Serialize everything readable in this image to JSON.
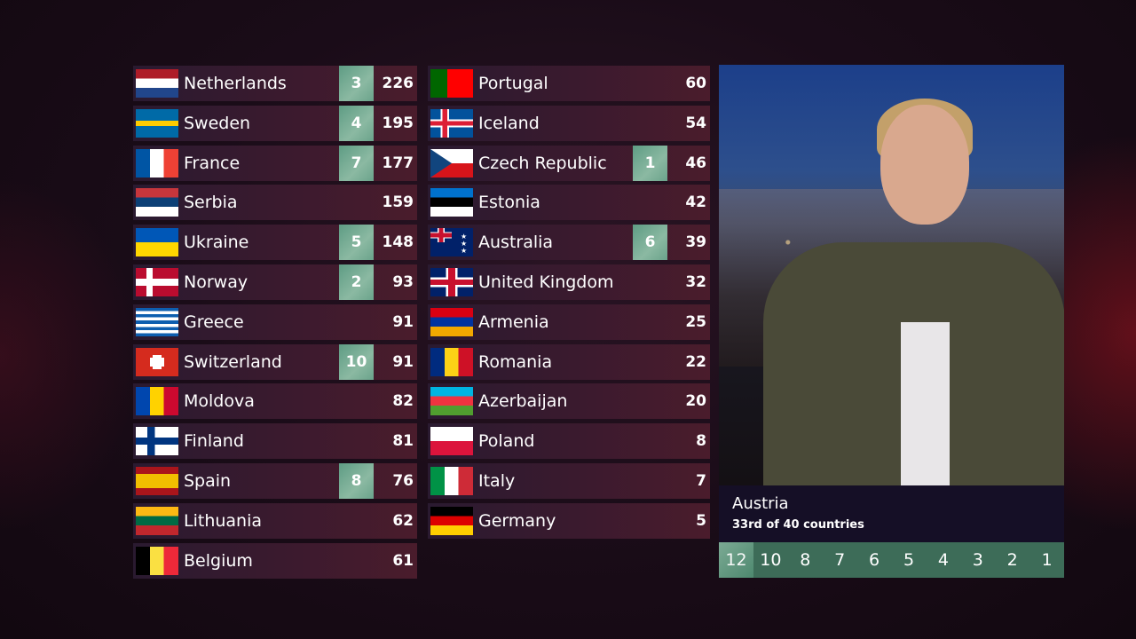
{
  "scoreboard": {
    "left": [
      {
        "country": "Netherlands",
        "flag": "flag-nl",
        "received": "3",
        "total": "226"
      },
      {
        "country": "Sweden",
        "flag": "flag-se",
        "received": "4",
        "total": "195"
      },
      {
        "country": "France",
        "flag": "flag-fr",
        "received": "7",
        "total": "177"
      },
      {
        "country": "Serbia",
        "flag": "flag-rs",
        "received": "",
        "total": "159"
      },
      {
        "country": "Ukraine",
        "flag": "flag-ua",
        "received": "5",
        "total": "148"
      },
      {
        "country": "Norway",
        "flag": "flag-no",
        "received": "2",
        "total": "93"
      },
      {
        "country": "Greece",
        "flag": "flag-gr",
        "received": "",
        "total": "91"
      },
      {
        "country": "Switzerland",
        "flag": "flag-ch",
        "received": "10",
        "total": "91"
      },
      {
        "country": "Moldova",
        "flag": "flag-md",
        "received": "",
        "total": "82"
      },
      {
        "country": "Finland",
        "flag": "flag-fi",
        "received": "",
        "total": "81"
      },
      {
        "country": "Spain",
        "flag": "flag-es",
        "received": "8",
        "total": "76"
      },
      {
        "country": "Lithuania",
        "flag": "flag-lt",
        "received": "",
        "total": "62"
      },
      {
        "country": "Belgium",
        "flag": "flag-be",
        "received": "",
        "total": "61"
      }
    ],
    "right": [
      {
        "country": "Portugal",
        "flag": "flag-pt",
        "received": "",
        "total": "60"
      },
      {
        "country": "Iceland",
        "flag": "flag-is",
        "received": "",
        "total": "54"
      },
      {
        "country": "Czech Republic",
        "flag": "flag-cz",
        "received": "1",
        "total": "46"
      },
      {
        "country": "Estonia",
        "flag": "flag-ee",
        "received": "",
        "total": "42"
      },
      {
        "country": "Australia",
        "flag": "flag-au",
        "received": "6",
        "total": "39"
      },
      {
        "country": "United Kingdom",
        "flag": "flag-gb",
        "received": "",
        "total": "32"
      },
      {
        "country": "Armenia",
        "flag": "flag-am",
        "received": "",
        "total": "25"
      },
      {
        "country": "Romania",
        "flag": "flag-ro",
        "received": "",
        "total": "22"
      },
      {
        "country": "Azerbaijan",
        "flag": "flag-az",
        "received": "",
        "total": "20"
      },
      {
        "country": "Poland",
        "flag": "flag-pl",
        "received": "",
        "total": "8"
      },
      {
        "country": "Italy",
        "flag": "flag-it",
        "received": "",
        "total": "7"
      },
      {
        "country": "Germany",
        "flag": "flag-de",
        "received": "",
        "total": "5"
      }
    ]
  },
  "spokesperson": {
    "country": "Austria",
    "status": "33rd of 40 countries"
  },
  "points_bar": {
    "values": [
      "12",
      "10",
      "8",
      "7",
      "6",
      "5",
      "4",
      "3",
      "2",
      "1"
    ],
    "awarded_count": 1
  },
  "colors": {
    "badge": "#7fae98",
    "points_bar": "#3d6c58",
    "caption": "#150f26"
  }
}
